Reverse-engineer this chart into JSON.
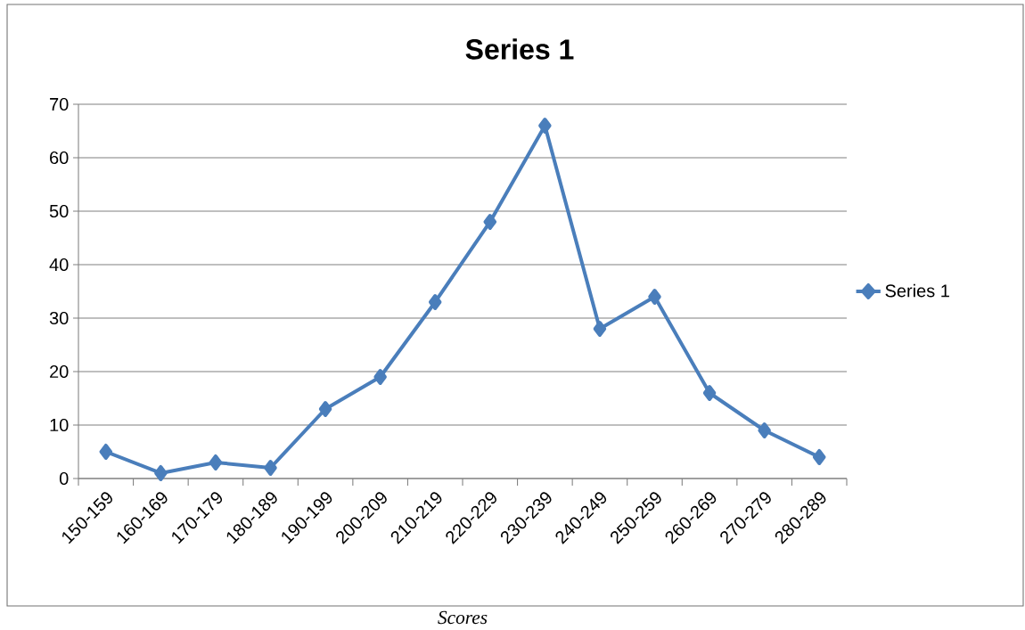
{
  "chart_data": {
    "type": "line",
    "title": "Series 1",
    "categories": [
      "150-159",
      "160-169",
      "170-179",
      "180-189",
      "190-199",
      "200-209",
      "210-219",
      "220-229",
      "230-239",
      "240-249",
      "250-259",
      "260-269",
      "270-279",
      "280-289"
    ],
    "series": [
      {
        "name": "Series 1",
        "color": "#4a7ebb",
        "values": [
          5,
          1,
          3,
          2,
          13,
          19,
          33,
          48,
          66,
          28,
          34,
          16,
          9,
          4
        ]
      }
    ],
    "ylim": [
      0,
      70
    ],
    "yticks": [
      0,
      10,
      20,
      30,
      40,
      50,
      60,
      70
    ],
    "grid": "y",
    "legend": "right",
    "marker": "diamond",
    "line_style": "solid",
    "annotations": [
      "Scores"
    ]
  }
}
